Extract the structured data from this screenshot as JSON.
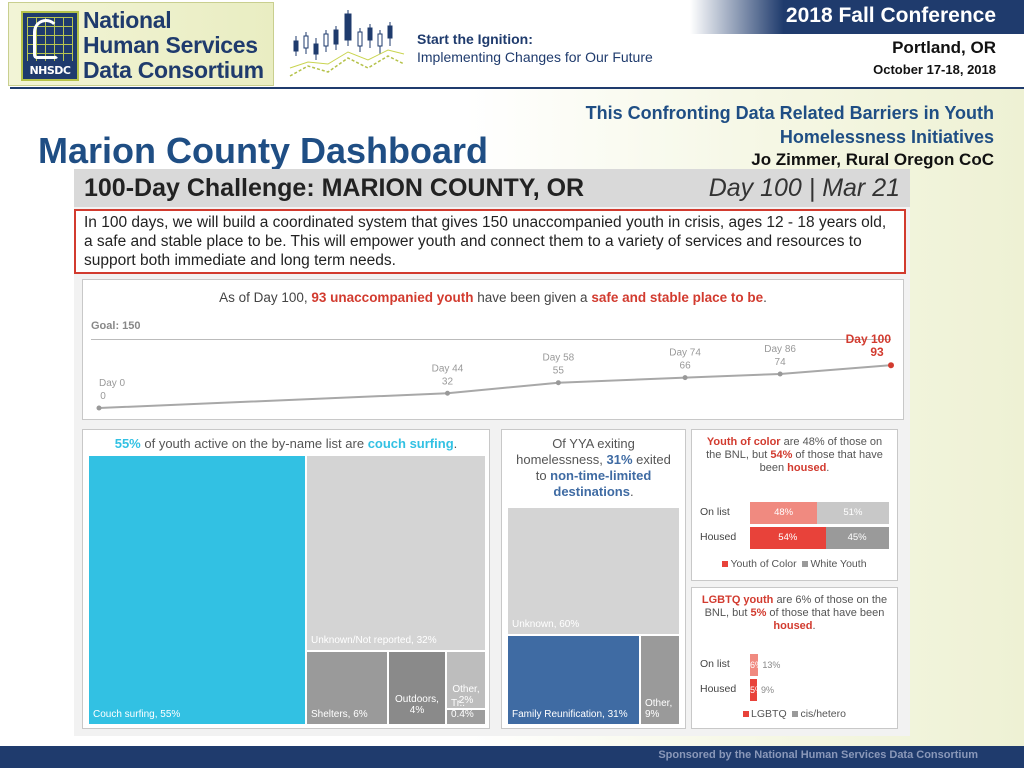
{
  "header": {
    "org_name_line1": "National",
    "org_name_line2": "Human Services",
    "org_name_line3": "Data Consortium",
    "org_acronym": "NHSDC",
    "tagline_bold": "Start the Ignition:",
    "tagline_rest": "Implementing Changes for Our Future",
    "conference_title": "2018 Fall Conference",
    "conference_city": "Portland, OR",
    "conference_dates": "October 17-18, 2018"
  },
  "slide": {
    "title": "Marion County Dashboard",
    "subtitle": "This Confronting Data Related Barriers in Youth Homelessness Initiatives",
    "presenter": "Jo Zimmer, Rural Oregon CoC"
  },
  "dashboard": {
    "title": "100-Day Challenge: MARION COUNTY, OR",
    "day_label": "Day 100 | Mar 21",
    "goal_statement": "In 100 days, we will build a coordinated system that gives 150 unaccompanied youth in crisis, ages 12 - 18 years old, a safe and stable place to be. This will empower youth and connect them to a variety of services and resources to support both immediate and long term needs.",
    "progress": {
      "headline_pre": "As of Day 100,",
      "headline_num_phrase": "93 unaccompanied youth",
      "headline_mid": "have been given a",
      "headline_emph": "safe and stable place to be",
      "headline_end": ".",
      "goal_label": "Goal: 150",
      "points": [
        {
          "label": "Day 0",
          "day": 0,
          "value": 0
        },
        {
          "label": "Day 44",
          "day": 44,
          "value": 32
        },
        {
          "label": "Day 58",
          "day": 58,
          "value": 55
        },
        {
          "label": "Day 74",
          "day": 74,
          "value": 66
        },
        {
          "label": "Day 86",
          "day": 86,
          "value": 74
        },
        {
          "label": "Day 100",
          "day": 100,
          "value": 93
        }
      ]
    },
    "couch_surfing": {
      "head_pct": "55%",
      "head_mid": "of youth  active on the by-name list are",
      "head_emph": "couch surfing",
      "head_end": ".",
      "tiles": [
        {
          "label": "Couch surfing, 55%",
          "value": 55,
          "color": "#32c1e3"
        },
        {
          "label": "Unknown/Not reported, 32%",
          "value": 32,
          "color": "#d4d4d4"
        },
        {
          "label": "Shelters, 6%",
          "value": 6,
          "color": "#9a9a9a"
        },
        {
          "label": "Outdoors, 4%",
          "value": 4,
          "color": "#8a8a8a"
        },
        {
          "label": "Other, 2%",
          "value": 2,
          "color": "#bdbdbd"
        },
        {
          "label": "Tr.. 0.4%",
          "value": 0.4,
          "color": "#9d9d9d"
        }
      ]
    },
    "exiting": {
      "head_line1": "Of YYA  exiting",
      "head_line2_pre": "homelessness,",
      "head_pct": "31%",
      "head_line2_post": "exited",
      "head_line3_pre": "to",
      "head_emph": "non-time-limited destinations",
      "head_end": ".",
      "tiles": [
        {
          "label": "Unknown, 60%",
          "value": 60,
          "color": "#d4d4d4"
        },
        {
          "label": "Family Reunification, 31%",
          "value": 31,
          "color": "#3f6ba3"
        },
        {
          "label": "Other, 9%",
          "value": 9,
          "color": "#9a9a9a"
        }
      ]
    },
    "youth_of_color": {
      "head_emph1": "Youth of color",
      "head_mid1": "are 48% of those on the BNL, but",
      "head_emph2": "54%",
      "head_mid2": "of those that have  been",
      "head_emph3": "housed",
      "head_end": ".",
      "rows": [
        {
          "label": "On list",
          "a": 48,
          "b": 51,
          "a_label": "48%",
          "b_label": "51%"
        },
        {
          "label": "Housed",
          "a": 54,
          "b": 45,
          "a_label": "54%",
          "b_label": "45%"
        }
      ],
      "legend_a": "Youth of Color",
      "legend_b": "White Youth",
      "color_a": "#e8423a",
      "color_a_light": "#f08a80",
      "color_b": "#9a9a9a",
      "color_b_light": "#c8c8c8"
    },
    "lgbtq": {
      "head_emph1": "LGBTQ youth",
      "head_mid1": "are 6% of those on the BNL, but",
      "head_emph2": "5%",
      "head_mid2": "of those that have  been",
      "head_emph3": "housed",
      "head_end": ".",
      "rows": [
        {
          "label": "On list",
          "a": 6,
          "b": 13,
          "a_label": "6%",
          "b_label": "13%"
        },
        {
          "label": "Housed",
          "a": 5,
          "b": 9,
          "a_label": "5%",
          "b_label": "9%"
        }
      ],
      "legend_a": "LGBTQ",
      "legend_b": "cis/hetero"
    }
  },
  "footer": {
    "text": "Sponsored by the National Human Services Data Consortium"
  }
}
